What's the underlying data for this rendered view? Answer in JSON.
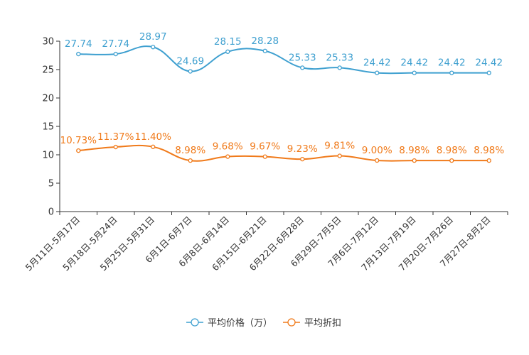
{
  "chart_data": {
    "type": "line",
    "title": "",
    "xlabel": "",
    "ylabel": "",
    "ylim": [
      0,
      30
    ],
    "yticks": [
      0,
      5,
      10,
      15,
      20,
      25,
      30
    ],
    "grid": false,
    "legend_position": "bottom",
    "categories": [
      "5月11日-5月17日",
      "5月18日-5月24日",
      "5月25日-5月31日",
      "6月1日-6月7日",
      "6月8日-6月14日",
      "6月15日-6月21日",
      "6月22日-6月28日",
      "6月29日-7月5日",
      "7月6日-7月12日",
      "7月13日-7月19日",
      "7月20日-7月26日",
      "7月27日-8月2日"
    ],
    "series": [
      {
        "name": "平均价格（万）",
        "color": "#3fa0d0",
        "values": [
          27.74,
          27.74,
          28.97,
          24.69,
          28.15,
          28.28,
          25.33,
          25.33,
          24.42,
          24.42,
          24.42,
          24.42
        ],
        "labels": [
          "27.74",
          "27.74",
          "28.97",
          "24.69",
          "28.15",
          "28.28",
          "25.33",
          "25.33",
          "24.42",
          "24.42",
          "24.42",
          "24.42"
        ]
      },
      {
        "name": "平均折扣",
        "color": "#f07a1a",
        "values": [
          10.73,
          11.37,
          11.4,
          8.98,
          9.68,
          9.67,
          9.23,
          9.81,
          9.0,
          8.98,
          8.98,
          8.98
        ],
        "labels": [
          "10.73%",
          "11.37%",
          "11.40%",
          "8.98%",
          "9.68%",
          "9.67%",
          "9.23%",
          "9.81%",
          "9.00%",
          "8.98%",
          "8.98%",
          "8.98%"
        ]
      }
    ]
  }
}
